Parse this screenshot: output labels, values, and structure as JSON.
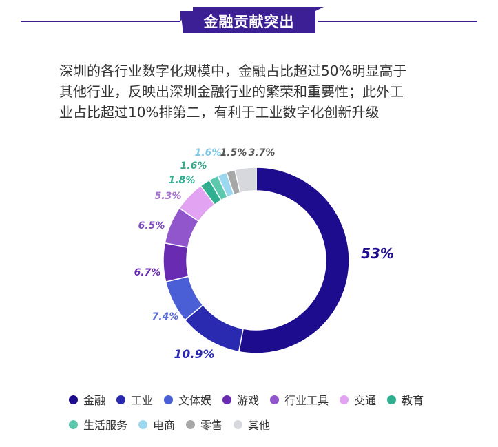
{
  "header": {
    "title": "金融贡献突出"
  },
  "intro_lines": [
    "深圳的各行业数字化规模中，金融占比超过50%明显高于",
    "其他行业，反映出深圳金融行业的繁荣和重要性；此外工",
    "业占比超过10%排第二，有利于工业数字化创新升级"
  ],
  "colors": {
    "accent": "#3d1f95"
  },
  "chart_data": {
    "type": "pie",
    "style": "donut",
    "title": "",
    "slices": [
      {
        "name": "金融",
        "value": 53,
        "label": "53%",
        "color": "#1e0c8e"
      },
      {
        "name": "工业",
        "value": 10.9,
        "label": "10.9%",
        "color": "#2a2ab0"
      },
      {
        "name": "文体娱",
        "value": 7.4,
        "label": "7.4%",
        "color": "#4a5fd6"
      },
      {
        "name": "游戏",
        "value": 6.7,
        "label": "6.7%",
        "color": "#6a2bb3"
      },
      {
        "name": "行业工具",
        "value": 6.5,
        "label": "6.5%",
        "color": "#9156cc"
      },
      {
        "name": "交通",
        "value": 5.3,
        "label": "5.3%",
        "color": "#e2a4f2"
      },
      {
        "name": "教育",
        "value": 1.8,
        "label": "1.8%",
        "color": "#2fae90"
      },
      {
        "name": "生活服务",
        "value": 1.6,
        "label": "1.6%",
        "color": "#5cc8ae"
      },
      {
        "name": "电商",
        "value": 1.6,
        "label": "1.6%",
        "color": "#9bd7ef"
      },
      {
        "name": "零售",
        "value": 1.5,
        "label": "1.5%",
        "color": "#a7a7a7"
      },
      {
        "name": "其他",
        "value": 3.7,
        "label": "3.7%",
        "color": "#d6d8dd"
      }
    ],
    "legend_position": "bottom"
  }
}
